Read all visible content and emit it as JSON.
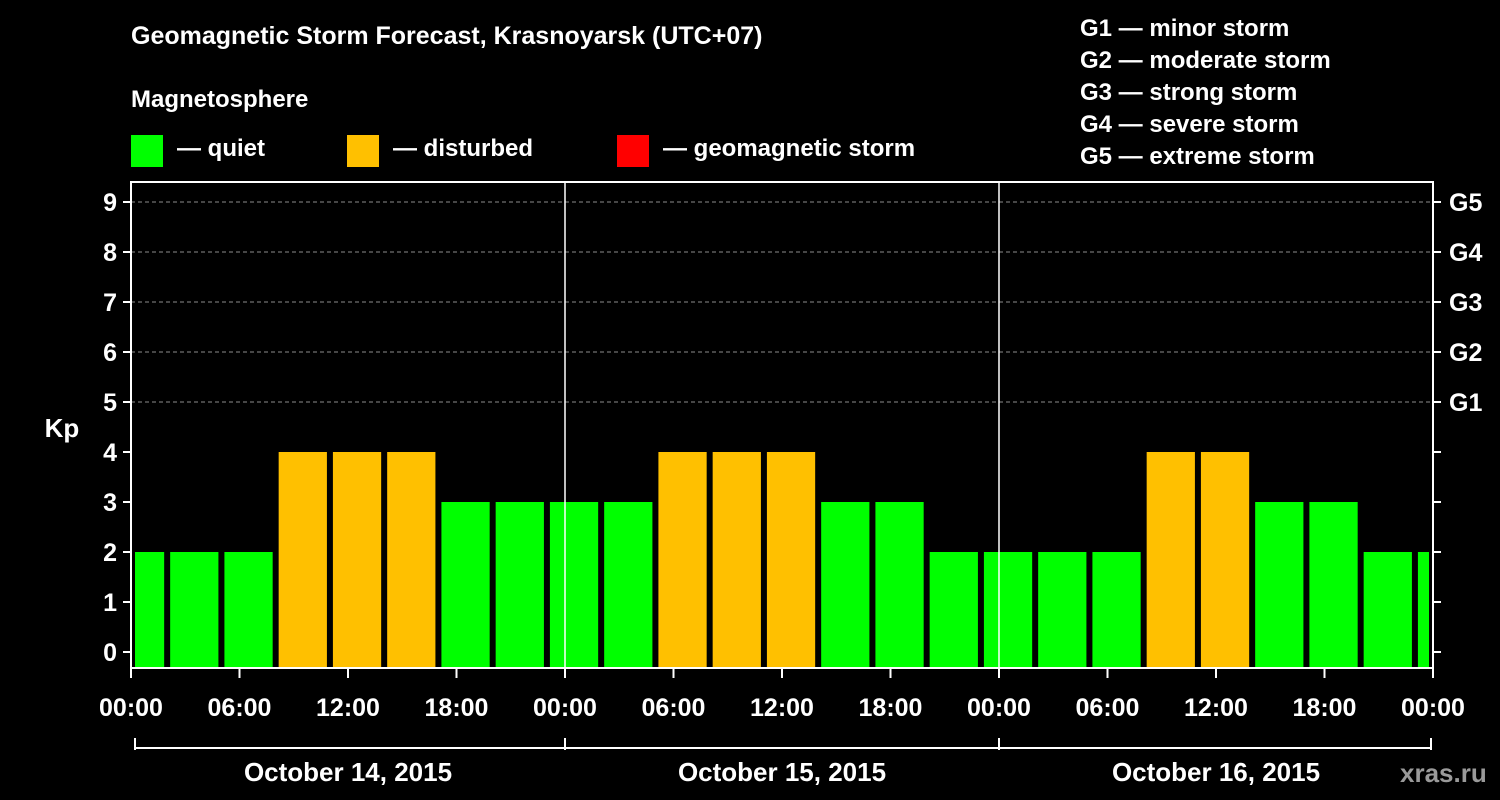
{
  "header": {
    "title": "Geomagnetic Storm Forecast, Krasnoyarsk (UTC+07)",
    "subtitle": "Magnetosphere"
  },
  "legend": [
    {
      "label": "— quiet",
      "color": "#00ff00"
    },
    {
      "label": "— disturbed",
      "color": "#ffc000"
    },
    {
      "label": "— geomagnetic storm",
      "color": "#ff0000"
    }
  ],
  "g_legend": [
    "G1 — minor storm",
    "G2 — moderate storm",
    "G3 — strong storm",
    "G4 — severe storm",
    "G5 — extreme storm"
  ],
  "watermark": "xras.ru",
  "chart_data": {
    "type": "bar",
    "ylabel": "Kp",
    "ylim": [
      0,
      9
    ],
    "y_ticks": [
      "0",
      "1",
      "2",
      "3",
      "4",
      "5",
      "6",
      "7",
      "8",
      "9"
    ],
    "right_ticks": [
      {
        "value": 5,
        "label": "G1"
      },
      {
        "value": 6,
        "label": "G2"
      },
      {
        "value": 7,
        "label": "G3"
      },
      {
        "value": 8,
        "label": "G4"
      },
      {
        "value": 9,
        "label": "G5"
      }
    ],
    "x_tick_labels": [
      "00:00",
      "06:00",
      "12:00",
      "18:00",
      "00:00",
      "06:00",
      "12:00",
      "18:00",
      "00:00",
      "06:00",
      "12:00",
      "18:00",
      "00:00"
    ],
    "days": [
      "October 14, 2015",
      "October 15, 2015",
      "October 16, 2015"
    ],
    "start_hour": -1,
    "interval_hours": 3,
    "total_hours": 72,
    "values": [
      2,
      2,
      2,
      4,
      4,
      4,
      3,
      3,
      3,
      3,
      4,
      4,
      4,
      3,
      3,
      2,
      2,
      2,
      2,
      4,
      4,
      3,
      3,
      2,
      2
    ],
    "colors": {
      "quiet": "#00ff00",
      "disturbed": "#ffc000",
      "storm": "#ff0000"
    },
    "grid": true
  }
}
